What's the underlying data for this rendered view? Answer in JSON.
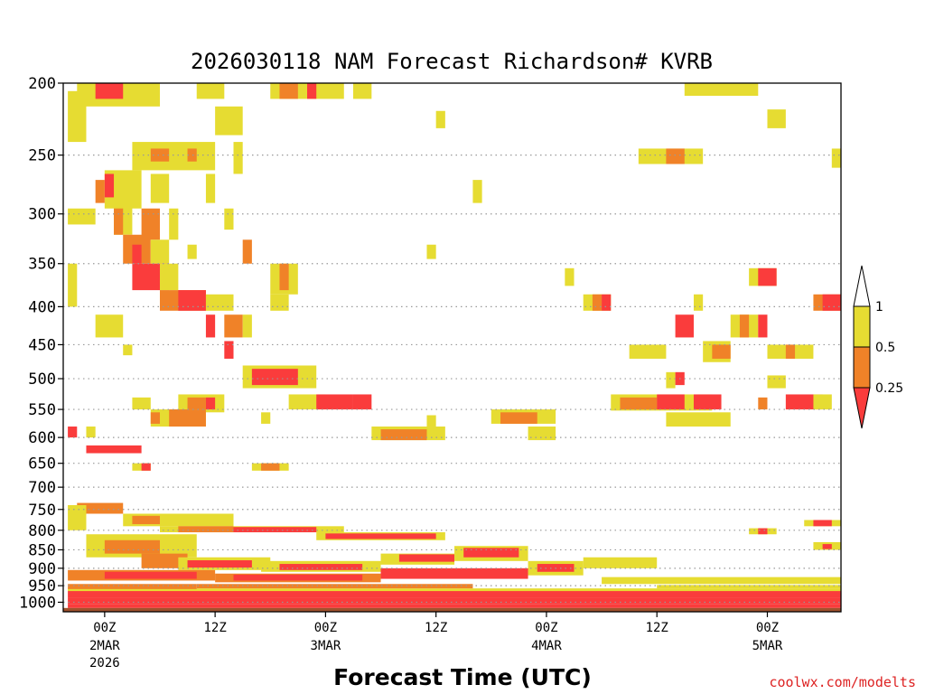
{
  "chart_data": {
    "type": "heatmap",
    "title": "2026030118 NAM Forecast Richardson# KVRB",
    "xlabel": "Forecast Time (UTC)",
    "ylabel": "",
    "credit": "coolwx.com/modelts",
    "xlim": [
      -4.5,
      80
    ],
    "ylim": [
      200,
      1030
    ],
    "y_scale": "log-pressure",
    "y_ticks": [
      200,
      250,
      300,
      350,
      400,
      450,
      500,
      550,
      600,
      650,
      700,
      750,
      800,
      850,
      900,
      950,
      1000
    ],
    "y_tick_labels": [
      "200",
      "250",
      "300",
      "350",
      "400",
      "450",
      "500",
      "550",
      "600",
      "650",
      "700",
      "750",
      "800",
      "850",
      "900",
      "950",
      "1000"
    ],
    "x_ticks": [
      {
        "hour": 0,
        "label": "00Z",
        "line2": "2MAR",
        "line3": "2026"
      },
      {
        "hour": 12,
        "label": "12Z"
      },
      {
        "hour": 24,
        "label": "00Z",
        "line2": "3MAR"
      },
      {
        "hour": 36,
        "label": "12Z"
      },
      {
        "hour": 48,
        "label": "00Z",
        "line2": "4MAR"
      },
      {
        "hour": 60,
        "label": "12Z"
      },
      {
        "hour": 72,
        "label": "00Z",
        "line2": "5MAR"
      }
    ],
    "legend": {
      "placement": "right",
      "levels": [
        "1",
        "0.5",
        "0.25"
      ],
      "colors": {
        "lt1": "#e6dc32",
        "lt05": "#f08228",
        "lt025": "#fa3c3c"
      }
    },
    "colors": {
      "lt1": "#e6dc32",
      "lt05": "#f08228",
      "lt025": "#fa3c3c",
      "surface": "#a0522d",
      "grid": "#999999"
    },
    "cells_note": "approximate regions where Richardson number is below each level; [hour_start, hour_end, p_top, p_bottom, category]",
    "cells": [
      [
        -3,
        6,
        200,
        215,
        "lt1"
      ],
      [
        -1,
        2,
        200,
        210,
        "lt025"
      ],
      [
        -4,
        -2,
        205,
        240,
        "lt1"
      ],
      [
        10,
        13,
        200,
        210,
        "lt1"
      ],
      [
        18,
        26,
        200,
        210,
        "lt1"
      ],
      [
        19,
        21,
        200,
        210,
        "lt05"
      ],
      [
        22,
        23,
        200,
        210,
        "lt025"
      ],
      [
        27,
        29,
        200,
        210,
        "lt1"
      ],
      [
        12,
        15,
        215,
        235,
        "lt1"
      ],
      [
        36,
        37,
        218,
        230,
        "lt1"
      ],
      [
        63,
        71,
        200,
        208,
        "lt1"
      ],
      [
        72,
        74,
        217,
        230,
        "lt1"
      ],
      [
        3,
        12,
        240,
        262,
        "lt1"
      ],
      [
        5,
        7,
        245,
        255,
        "lt05"
      ],
      [
        9,
        10,
        245,
        255,
        "lt05"
      ],
      [
        14,
        15,
        240,
        265,
        "lt1"
      ],
      [
        58,
        65,
        245,
        257,
        "lt1"
      ],
      [
        61,
        63,
        245,
        257,
        "lt05"
      ],
      [
        79,
        80,
        245,
        260,
        "lt1"
      ],
      [
        0,
        4,
        262,
        295,
        "lt1"
      ],
      [
        0,
        1,
        265,
        285,
        "lt025"
      ],
      [
        -1,
        0,
        270,
        290,
        "lt05"
      ],
      [
        5,
        7,
        265,
        290,
        "lt1"
      ],
      [
        11,
        12,
        265,
        290,
        "lt1"
      ],
      [
        40,
        41,
        270,
        290,
        "lt1"
      ],
      [
        -4,
        -1,
        295,
        310,
        "lt1"
      ],
      [
        1,
        3,
        290,
        320,
        "lt1"
      ],
      [
        1,
        2,
        295,
        320,
        "lt05"
      ],
      [
        4,
        6,
        295,
        325,
        "lt05"
      ],
      [
        7,
        8,
        295,
        325,
        "lt1"
      ],
      [
        13,
        14,
        295,
        315,
        "lt1"
      ],
      [
        2,
        5,
        320,
        350,
        "lt05"
      ],
      [
        3,
        4,
        330,
        350,
        "lt025"
      ],
      [
        5,
        7,
        325,
        350,
        "lt1"
      ],
      [
        9,
        10,
        330,
        345,
        "lt1"
      ],
      [
        15,
        16,
        325,
        350,
        "lt05"
      ],
      [
        35,
        36,
        330,
        345,
        "lt1"
      ],
      [
        3,
        7,
        350,
        380,
        "lt025"
      ],
      [
        6,
        8,
        350,
        380,
        "lt1"
      ],
      [
        18,
        21,
        350,
        385,
        "lt1"
      ],
      [
        19,
        20,
        350,
        380,
        "lt05"
      ],
      [
        -4,
        -3,
        350,
        400,
        "lt1"
      ],
      [
        50,
        51,
        355,
        375,
        "lt1"
      ],
      [
        70,
        73,
        355,
        375,
        "lt1"
      ],
      [
        71,
        73,
        355,
        375,
        "lt025"
      ],
      [
        6,
        11,
        380,
        405,
        "lt05"
      ],
      [
        8,
        11,
        380,
        405,
        "lt025"
      ],
      [
        11,
        14,
        385,
        405,
        "lt1"
      ],
      [
        18,
        20,
        385,
        405,
        "lt1"
      ],
      [
        52,
        55,
        385,
        405,
        "lt1"
      ],
      [
        53,
        54,
        385,
        405,
        "lt05"
      ],
      [
        54,
        55,
        385,
        405,
        "lt025"
      ],
      [
        64,
        65,
        385,
        405,
        "lt1"
      ],
      [
        77,
        80,
        385,
        405,
        "lt05"
      ],
      [
        78,
        80,
        385,
        405,
        "lt025"
      ],
      [
        -1,
        2,
        410,
        440,
        "lt1"
      ],
      [
        11,
        12,
        410,
        440,
        "lt025"
      ],
      [
        13,
        15,
        410,
        440,
        "lt05"
      ],
      [
        15,
        16,
        410,
        440,
        "lt1"
      ],
      [
        62,
        64,
        410,
        440,
        "lt025"
      ],
      [
        68,
        71,
        410,
        440,
        "lt1"
      ],
      [
        69,
        70,
        410,
        440,
        "lt05"
      ],
      [
        71,
        72,
        410,
        440,
        "lt025"
      ],
      [
        2,
        3,
        450,
        465,
        "lt1"
      ],
      [
        13,
        14,
        445,
        470,
        "lt025"
      ],
      [
        57,
        61,
        450,
        470,
        "lt1"
      ],
      [
        65,
        68,
        445,
        475,
        "lt1"
      ],
      [
        66,
        68,
        450,
        470,
        "lt05"
      ],
      [
        72,
        77,
        450,
        470,
        "lt1"
      ],
      [
        74,
        75,
        450,
        470,
        "lt05"
      ],
      [
        15,
        23,
        480,
        515,
        "lt1"
      ],
      [
        16,
        21,
        485,
        510,
        "lt025"
      ],
      [
        61,
        62,
        490,
        515,
        "lt1"
      ],
      [
        62,
        63,
        490,
        510,
        "lt025"
      ],
      [
        72,
        74,
        495,
        515,
        "lt1"
      ],
      [
        3,
        5,
        530,
        550,
        "lt1"
      ],
      [
        8,
        13,
        525,
        555,
        "lt1"
      ],
      [
        9,
        11,
        530,
        550,
        "lt05"
      ],
      [
        11,
        12,
        530,
        550,
        "lt025"
      ],
      [
        20,
        24,
        525,
        550,
        "lt1"
      ],
      [
        23,
        27,
        525,
        550,
        "lt025"
      ],
      [
        27,
        29,
        525,
        550,
        "lt025"
      ],
      [
        55,
        66,
        525,
        552,
        "lt1"
      ],
      [
        56,
        60,
        530,
        550,
        "lt05"
      ],
      [
        60,
        63,
        525,
        550,
        "lt025"
      ],
      [
        64,
        67,
        525,
        550,
        "lt025"
      ],
      [
        71,
        72,
        530,
        550,
        "lt05"
      ],
      [
        74,
        78,
        525,
        550,
        "lt025"
      ],
      [
        77,
        79,
        525,
        550,
        "lt1"
      ],
      [
        5,
        11,
        550,
        580,
        "lt1"
      ],
      [
        7,
        11,
        550,
        580,
        "lt05"
      ],
      [
        5,
        6,
        555,
        575,
        "lt05"
      ],
      [
        17,
        18,
        555,
        575,
        "lt1"
      ],
      [
        35,
        36,
        560,
        580,
        "lt1"
      ],
      [
        42,
        49,
        550,
        575,
        "lt1"
      ],
      [
        43,
        47,
        555,
        575,
        "lt05"
      ],
      [
        61,
        68,
        555,
        580,
        "lt1"
      ],
      [
        -4,
        -3,
        580,
        600,
        "lt025"
      ],
      [
        -2,
        -1,
        580,
        600,
        "lt1"
      ],
      [
        29,
        37,
        580,
        605,
        "lt1"
      ],
      [
        30,
        35,
        585,
        605,
        "lt05"
      ],
      [
        46,
        49,
        580,
        605,
        "lt1"
      ],
      [
        -2,
        4,
        615,
        630,
        "lt025"
      ],
      [
        3,
        5,
        650,
        665,
        "lt1"
      ],
      [
        4,
        5,
        650,
        665,
        "lt025"
      ],
      [
        16,
        20,
        650,
        665,
        "lt1"
      ],
      [
        17,
        19,
        650,
        665,
        "lt05"
      ],
      [
        -3,
        2,
        735,
        760,
        "lt05"
      ],
      [
        -4,
        -2,
        740,
        800,
        "lt1"
      ],
      [
        2,
        14,
        760,
        790,
        "lt1"
      ],
      [
        3,
        6,
        765,
        785,
        "lt05"
      ],
      [
        6,
        26,
        790,
        805,
        "lt1"
      ],
      [
        8,
        14,
        790,
        805,
        "lt05"
      ],
      [
        14,
        23,
        792,
        805,
        "lt025"
      ],
      [
        23,
        37,
        805,
        825,
        "lt1"
      ],
      [
        24,
        36,
        808,
        822,
        "lt025"
      ],
      [
        -2,
        10,
        810,
        870,
        "lt1"
      ],
      [
        0,
        6,
        825,
        860,
        "lt05"
      ],
      [
        4,
        9,
        860,
        900,
        "lt05"
      ],
      [
        8,
        18,
        870,
        905,
        "lt1"
      ],
      [
        9,
        16,
        878,
        898,
        "lt025"
      ],
      [
        17,
        30,
        880,
        910,
        "lt1"
      ],
      [
        19,
        28,
        888,
        905,
        "lt025"
      ],
      [
        30,
        38,
        860,
        890,
        "lt1"
      ],
      [
        32,
        38,
        862,
        882,
        "lt025"
      ],
      [
        38,
        46,
        840,
        880,
        "lt1"
      ],
      [
        39,
        45,
        845,
        870,
        "lt025"
      ],
      [
        46,
        52,
        880,
        920,
        "lt1"
      ],
      [
        47,
        51,
        888,
        910,
        "lt025"
      ],
      [
        52,
        60,
        870,
        900,
        "lt1"
      ],
      [
        -4,
        12,
        905,
        935,
        "lt05"
      ],
      [
        0,
        10,
        910,
        930,
        "lt025"
      ],
      [
        12,
        30,
        915,
        940,
        "lt05"
      ],
      [
        14,
        28,
        918,
        935,
        "lt025"
      ],
      [
        30,
        46,
        900,
        930,
        "lt025"
      ],
      [
        70,
        73,
        795,
        810,
        "lt1"
      ],
      [
        71,
        72,
        795,
        810,
        "lt025"
      ],
      [
        76,
        80,
        775,
        790,
        "lt1"
      ],
      [
        77,
        79,
        775,
        790,
        "lt025"
      ],
      [
        77,
        80,
        830,
        850,
        "lt1"
      ],
      [
        78,
        79,
        835,
        848,
        "lt025"
      ],
      [
        54,
        80,
        925,
        945,
        "lt1"
      ],
      [
        -4,
        80,
        965,
        985,
        "lt025"
      ],
      [
        -4,
        80,
        985,
        1005,
        "lt025"
      ],
      [
        -4,
        80,
        1005,
        1018,
        "lt025"
      ],
      [
        -4,
        80,
        958,
        966,
        "lt1"
      ],
      [
        60,
        80,
        948,
        958,
        "lt1"
      ],
      [
        -4,
        10,
        945,
        960,
        "lt05"
      ],
      [
        10,
        40,
        945,
        958,
        "lt05"
      ]
    ]
  }
}
